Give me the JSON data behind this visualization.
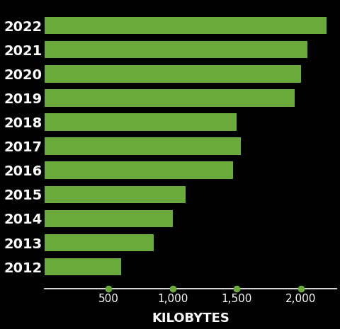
{
  "years": [
    "2022",
    "2021",
    "2020",
    "2019",
    "2018",
    "2017",
    "2016",
    "2015",
    "2014",
    "2013",
    "2012"
  ],
  "values": [
    2200,
    2050,
    2000,
    1950,
    1500,
    1530,
    1470,
    1100,
    1000,
    850,
    600
  ],
  "bar_color": "#6aaa3a",
  "bg_color": "#000000",
  "text_color": "#ffffff",
  "tick_color": "#6aaa3a",
  "xlabel": "KILOBYTES",
  "xlim": [
    0,
    2280
  ],
  "xticks": [
    500,
    1000,
    1500,
    2000
  ],
  "xlabel_fontsize": 13,
  "tick_fontsize": 11,
  "ytick_fontsize": 14,
  "bar_height": 0.72
}
